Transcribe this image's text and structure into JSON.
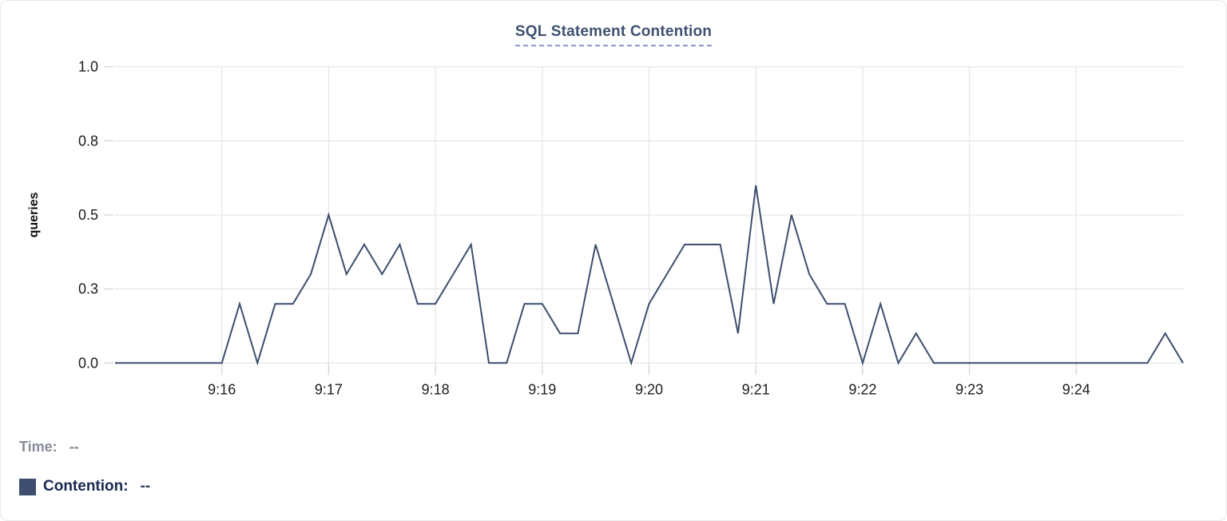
{
  "chart_data": {
    "type": "line",
    "title": "SQL Statement Contention",
    "xlabel": "",
    "ylabel": "queries",
    "ylim": [
      0,
      1.0
    ],
    "grid": true,
    "legend_position": "bottom-left",
    "x_range": [
      "9:15:00",
      "9:25:00"
    ],
    "x_ticks": [
      "9:16",
      "9:17",
      "9:18",
      "9:19",
      "9:20",
      "9:21",
      "9:22",
      "9:23",
      "9:24"
    ],
    "y_ticks": [
      {
        "value": 0,
        "label": "0.0"
      },
      {
        "value": 0.25,
        "label": "0.3"
      },
      {
        "value": 0.5,
        "label": "0.5"
      },
      {
        "value": 0.75,
        "label": "0.8"
      },
      {
        "value": 1.0,
        "label": "1.0"
      }
    ],
    "series": [
      {
        "name": "Contention",
        "color": "#3d4e6e",
        "x": [
          "9:15:00",
          "9:15:10",
          "9:15:20",
          "9:15:30",
          "9:15:40",
          "9:15:50",
          "9:16:00",
          "9:16:10",
          "9:16:20",
          "9:16:30",
          "9:16:40",
          "9:16:50",
          "9:17:00",
          "9:17:10",
          "9:17:20",
          "9:17:30",
          "9:17:40",
          "9:17:50",
          "9:18:00",
          "9:18:10",
          "9:18:20",
          "9:18:30",
          "9:18:40",
          "9:18:50",
          "9:19:00",
          "9:19:10",
          "9:19:20",
          "9:19:30",
          "9:19:40",
          "9:19:50",
          "9:20:00",
          "9:20:10",
          "9:20:20",
          "9:20:30",
          "9:20:40",
          "9:20:50",
          "9:21:00",
          "9:21:10",
          "9:21:20",
          "9:21:30",
          "9:21:40",
          "9:21:50",
          "9:22:00",
          "9:22:10",
          "9:22:20",
          "9:22:30",
          "9:22:40",
          "9:22:50",
          "9:23:00",
          "9:23:10",
          "9:23:20",
          "9:23:30",
          "9:23:40",
          "9:23:50",
          "9:24:00",
          "9:24:10",
          "9:24:20",
          "9:24:30",
          "9:24:40",
          "9:24:50",
          "9:25:00"
        ],
        "values": [
          0,
          0,
          0,
          0,
          0,
          0,
          0,
          0.2,
          0,
          0.2,
          0.2,
          0.3,
          0.5,
          0.3,
          0.4,
          0.3,
          0.4,
          0.2,
          0.2,
          0.3,
          0.4,
          0,
          0,
          0.2,
          0.2,
          0.1,
          0.1,
          0.4,
          0.2,
          0,
          0.2,
          0.3,
          0.4,
          0.4,
          0.4,
          0.1,
          0.6,
          0.2,
          0.5,
          0.3,
          0.2,
          0.2,
          0,
          0.2,
          0,
          0.1,
          0,
          0,
          0,
          0,
          0,
          0,
          0,
          0,
          0,
          0,
          0,
          0,
          0,
          0.1,
          0
        ]
      }
    ]
  },
  "legend": {
    "time_label": "Time:",
    "time_value": "--",
    "contention_label": "Contention:",
    "contention_value": "--"
  },
  "colors": {
    "line": "#3d4e6e",
    "title": "#3d5170",
    "title_underline": "#8d9ac8",
    "grid": "#e9e9ec",
    "tick": "#d8d8dc",
    "axis_text": "#1c1c21",
    "legend_gray": "#868c96",
    "legend_navy": "#1a2950"
  }
}
